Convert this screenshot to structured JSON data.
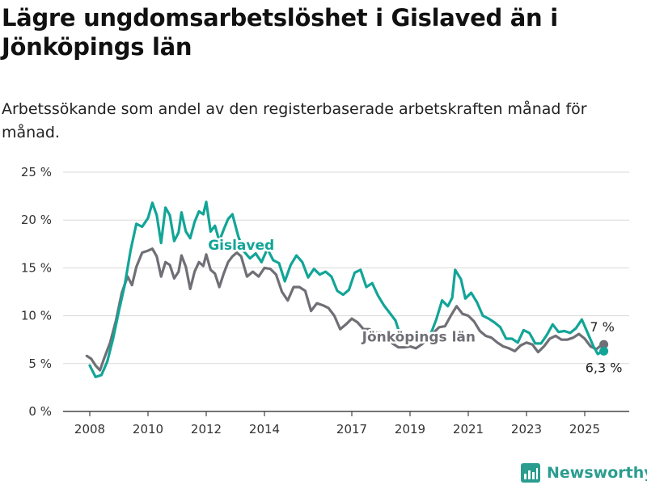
{
  "title": "Lägre ungdomsarbetslöshet i Gislaved än i Jönköpings län",
  "subtitle": "Arbetssökande som andel av den registerbaserade arbetskraften månad för månad.",
  "brand": "Newsworthy",
  "colors": {
    "gislaved": "#12a597",
    "lan": "#6f6f76",
    "grid": "#d9d9d9"
  },
  "chart_data": {
    "type": "line",
    "title": "Lägre ungdomsarbetslöshet i Gislaved än i Jönköpings län",
    "subtitle": "Arbetssökande som andel av den registerbaserade arbetskraften månad för månad.",
    "ylim": [
      0,
      25
    ],
    "yticks": [
      0,
      5,
      10,
      15,
      20,
      25
    ],
    "ytick_labels": [
      "0 %",
      "5 %",
      "10 %",
      "15 %",
      "20 %",
      "25 %"
    ],
    "xticks": [
      2008,
      2010,
      2012,
      2014,
      2017,
      2019,
      2021,
      2023,
      2025
    ],
    "xlim": [
      2007.0,
      2026.5
    ],
    "grid": true,
    "series": [
      {
        "name": "Gislaved",
        "key": "gislaved",
        "end_label": "6,3 %",
        "points": [
          [
            2008.0,
            4.8
          ],
          [
            2008.2,
            3.6
          ],
          [
            2008.4,
            3.8
          ],
          [
            2008.6,
            5.2
          ],
          [
            2008.8,
            7.6
          ],
          [
            2009.0,
            10.5
          ],
          [
            2009.2,
            13.2
          ],
          [
            2009.4,
            16.8
          ],
          [
            2009.6,
            19.6
          ],
          [
            2009.8,
            19.3
          ],
          [
            2010.0,
            20.2
          ],
          [
            2010.15,
            21.8
          ],
          [
            2010.3,
            20.5
          ],
          [
            2010.45,
            17.6
          ],
          [
            2010.6,
            21.3
          ],
          [
            2010.75,
            20.5
          ],
          [
            2010.9,
            17.8
          ],
          [
            2011.05,
            18.7
          ],
          [
            2011.15,
            20.8
          ],
          [
            2011.3,
            18.8
          ],
          [
            2011.45,
            18.1
          ],
          [
            2011.6,
            19.8
          ],
          [
            2011.75,
            20.9
          ],
          [
            2011.9,
            20.6
          ],
          [
            2012.0,
            21.9
          ],
          [
            2012.15,
            18.8
          ],
          [
            2012.3,
            19.4
          ],
          [
            2012.45,
            17.8
          ],
          [
            2012.6,
            19.0
          ],
          [
            2012.75,
            20.1
          ],
          [
            2012.9,
            20.6
          ],
          [
            2013.1,
            18.3
          ],
          [
            2013.3,
            16.7
          ],
          [
            2013.5,
            16.0
          ],
          [
            2013.7,
            16.5
          ],
          [
            2013.9,
            15.6
          ],
          [
            2014.1,
            17.0
          ],
          [
            2014.3,
            15.8
          ],
          [
            2014.5,
            15.5
          ],
          [
            2014.7,
            13.6
          ],
          [
            2014.9,
            15.3
          ],
          [
            2015.1,
            16.3
          ],
          [
            2015.3,
            15.6
          ],
          [
            2015.5,
            14.0
          ],
          [
            2015.7,
            14.9
          ],
          [
            2015.9,
            14.3
          ],
          [
            2016.1,
            14.6
          ],
          [
            2016.3,
            14.1
          ],
          [
            2016.5,
            12.6
          ],
          [
            2016.7,
            12.2
          ],
          [
            2016.9,
            12.7
          ],
          [
            2017.1,
            14.5
          ],
          [
            2017.3,
            14.8
          ],
          [
            2017.5,
            13.0
          ],
          [
            2017.7,
            13.4
          ],
          [
            2017.9,
            12.1
          ],
          [
            2018.1,
            11.1
          ],
          [
            2018.3,
            10.3
          ],
          [
            2018.5,
            9.5
          ],
          [
            2018.7,
            7.6
          ],
          [
            2018.9,
            7.7
          ],
          [
            2019.1,
            7.4
          ],
          [
            2019.3,
            7.6
          ],
          [
            2019.5,
            7.7
          ],
          [
            2019.7,
            8.0
          ],
          [
            2019.9,
            9.6
          ],
          [
            2020.1,
            11.6
          ],
          [
            2020.3,
            11.0
          ],
          [
            2020.45,
            11.9
          ],
          [
            2020.55,
            14.8
          ],
          [
            2020.75,
            13.8
          ],
          [
            2020.9,
            11.8
          ],
          [
            2021.1,
            12.4
          ],
          [
            2021.3,
            11.4
          ],
          [
            2021.5,
            10.0
          ],
          [
            2021.7,
            9.7
          ],
          [
            2021.9,
            9.3
          ],
          [
            2022.1,
            8.8
          ],
          [
            2022.3,
            7.6
          ],
          [
            2022.5,
            7.6
          ],
          [
            2022.7,
            7.2
          ],
          [
            2022.9,
            8.5
          ],
          [
            2023.1,
            8.2
          ],
          [
            2023.3,
            7.1
          ],
          [
            2023.5,
            7.1
          ],
          [
            2023.7,
            8.0
          ],
          [
            2023.9,
            9.1
          ],
          [
            2024.1,
            8.3
          ],
          [
            2024.3,
            8.4
          ],
          [
            2024.5,
            8.2
          ],
          [
            2024.7,
            8.7
          ],
          [
            2024.9,
            9.6
          ],
          [
            2025.1,
            8.2
          ],
          [
            2025.3,
            6.8
          ],
          [
            2025.45,
            6.0
          ],
          [
            2025.6,
            6.3
          ]
        ]
      },
      {
        "name": "Jönköpings län",
        "key": "lan",
        "end_label": "7 %",
        "points": [
          [
            2007.9,
            5.8
          ],
          [
            2008.05,
            5.5
          ],
          [
            2008.2,
            4.8
          ],
          [
            2008.35,
            4.3
          ],
          [
            2008.5,
            5.6
          ],
          [
            2008.7,
            7.2
          ],
          [
            2008.9,
            9.5
          ],
          [
            2009.1,
            12.4
          ],
          [
            2009.3,
            14.1
          ],
          [
            2009.45,
            13.2
          ],
          [
            2009.6,
            15.1
          ],
          [
            2009.8,
            16.6
          ],
          [
            2010.0,
            16.8
          ],
          [
            2010.15,
            17.0
          ],
          [
            2010.3,
            16.2
          ],
          [
            2010.45,
            14.1
          ],
          [
            2010.6,
            15.6
          ],
          [
            2010.75,
            15.3
          ],
          [
            2010.9,
            13.9
          ],
          [
            2011.05,
            14.6
          ],
          [
            2011.15,
            16.3
          ],
          [
            2011.3,
            15.1
          ],
          [
            2011.45,
            12.8
          ],
          [
            2011.6,
            14.6
          ],
          [
            2011.75,
            15.6
          ],
          [
            2011.9,
            15.2
          ],
          [
            2012.0,
            16.4
          ],
          [
            2012.15,
            14.8
          ],
          [
            2012.3,
            14.4
          ],
          [
            2012.45,
            13.0
          ],
          [
            2012.6,
            14.4
          ],
          [
            2012.75,
            15.6
          ],
          [
            2012.9,
            16.2
          ],
          [
            2013.05,
            16.6
          ],
          [
            2013.2,
            16.2
          ],
          [
            2013.4,
            14.1
          ],
          [
            2013.6,
            14.6
          ],
          [
            2013.8,
            14.1
          ],
          [
            2014.0,
            15.0
          ],
          [
            2014.2,
            14.9
          ],
          [
            2014.4,
            14.3
          ],
          [
            2014.6,
            12.5
          ],
          [
            2014.8,
            11.6
          ],
          [
            2015.0,
            13.0
          ],
          [
            2015.2,
            13.0
          ],
          [
            2015.4,
            12.6
          ],
          [
            2015.6,
            10.5
          ],
          [
            2015.8,
            11.3
          ],
          [
            2016.0,
            11.1
          ],
          [
            2016.2,
            10.8
          ],
          [
            2016.4,
            10.0
          ],
          [
            2016.6,
            8.6
          ],
          [
            2016.8,
            9.1
          ],
          [
            2017.0,
            9.7
          ],
          [
            2017.2,
            9.3
          ],
          [
            2017.4,
            8.6
          ],
          [
            2017.6,
            8.6
          ],
          [
            2017.8,
            8.2
          ],
          [
            2018.0,
            8.2
          ],
          [
            2018.2,
            7.8
          ],
          [
            2018.4,
            7.1
          ],
          [
            2018.6,
            6.7
          ],
          [
            2018.8,
            6.7
          ],
          [
            2019.0,
            6.8
          ],
          [
            2019.2,
            6.6
          ],
          [
            2019.4,
            7.0
          ],
          [
            2019.6,
            7.6
          ],
          [
            2019.8,
            8.2
          ],
          [
            2020.0,
            8.8
          ],
          [
            2020.2,
            8.9
          ],
          [
            2020.4,
            10.0
          ],
          [
            2020.6,
            11.0
          ],
          [
            2020.8,
            10.2
          ],
          [
            2021.0,
            10.0
          ],
          [
            2021.2,
            9.4
          ],
          [
            2021.4,
            8.4
          ],
          [
            2021.6,
            7.9
          ],
          [
            2021.8,
            7.7
          ],
          [
            2022.0,
            7.2
          ],
          [
            2022.2,
            6.8
          ],
          [
            2022.4,
            6.6
          ],
          [
            2022.6,
            6.3
          ],
          [
            2022.8,
            6.9
          ],
          [
            2023.0,
            7.2
          ],
          [
            2023.2,
            7.0
          ],
          [
            2023.4,
            6.2
          ],
          [
            2023.6,
            6.8
          ],
          [
            2023.8,
            7.6
          ],
          [
            2024.0,
            7.9
          ],
          [
            2024.2,
            7.5
          ],
          [
            2024.4,
            7.5
          ],
          [
            2024.6,
            7.7
          ],
          [
            2024.8,
            8.1
          ],
          [
            2025.0,
            7.6
          ],
          [
            2025.2,
            6.8
          ],
          [
            2025.4,
            6.5
          ],
          [
            2025.6,
            7.0
          ]
        ]
      }
    ],
    "labels": [
      {
        "text": "Gislaved",
        "series": "gislaved",
        "x": 2013.2,
        "y": 17.4
      },
      {
        "text": "Jönköpings län",
        "series": "lan",
        "x": 2019.3,
        "y": 7.8
      }
    ]
  }
}
